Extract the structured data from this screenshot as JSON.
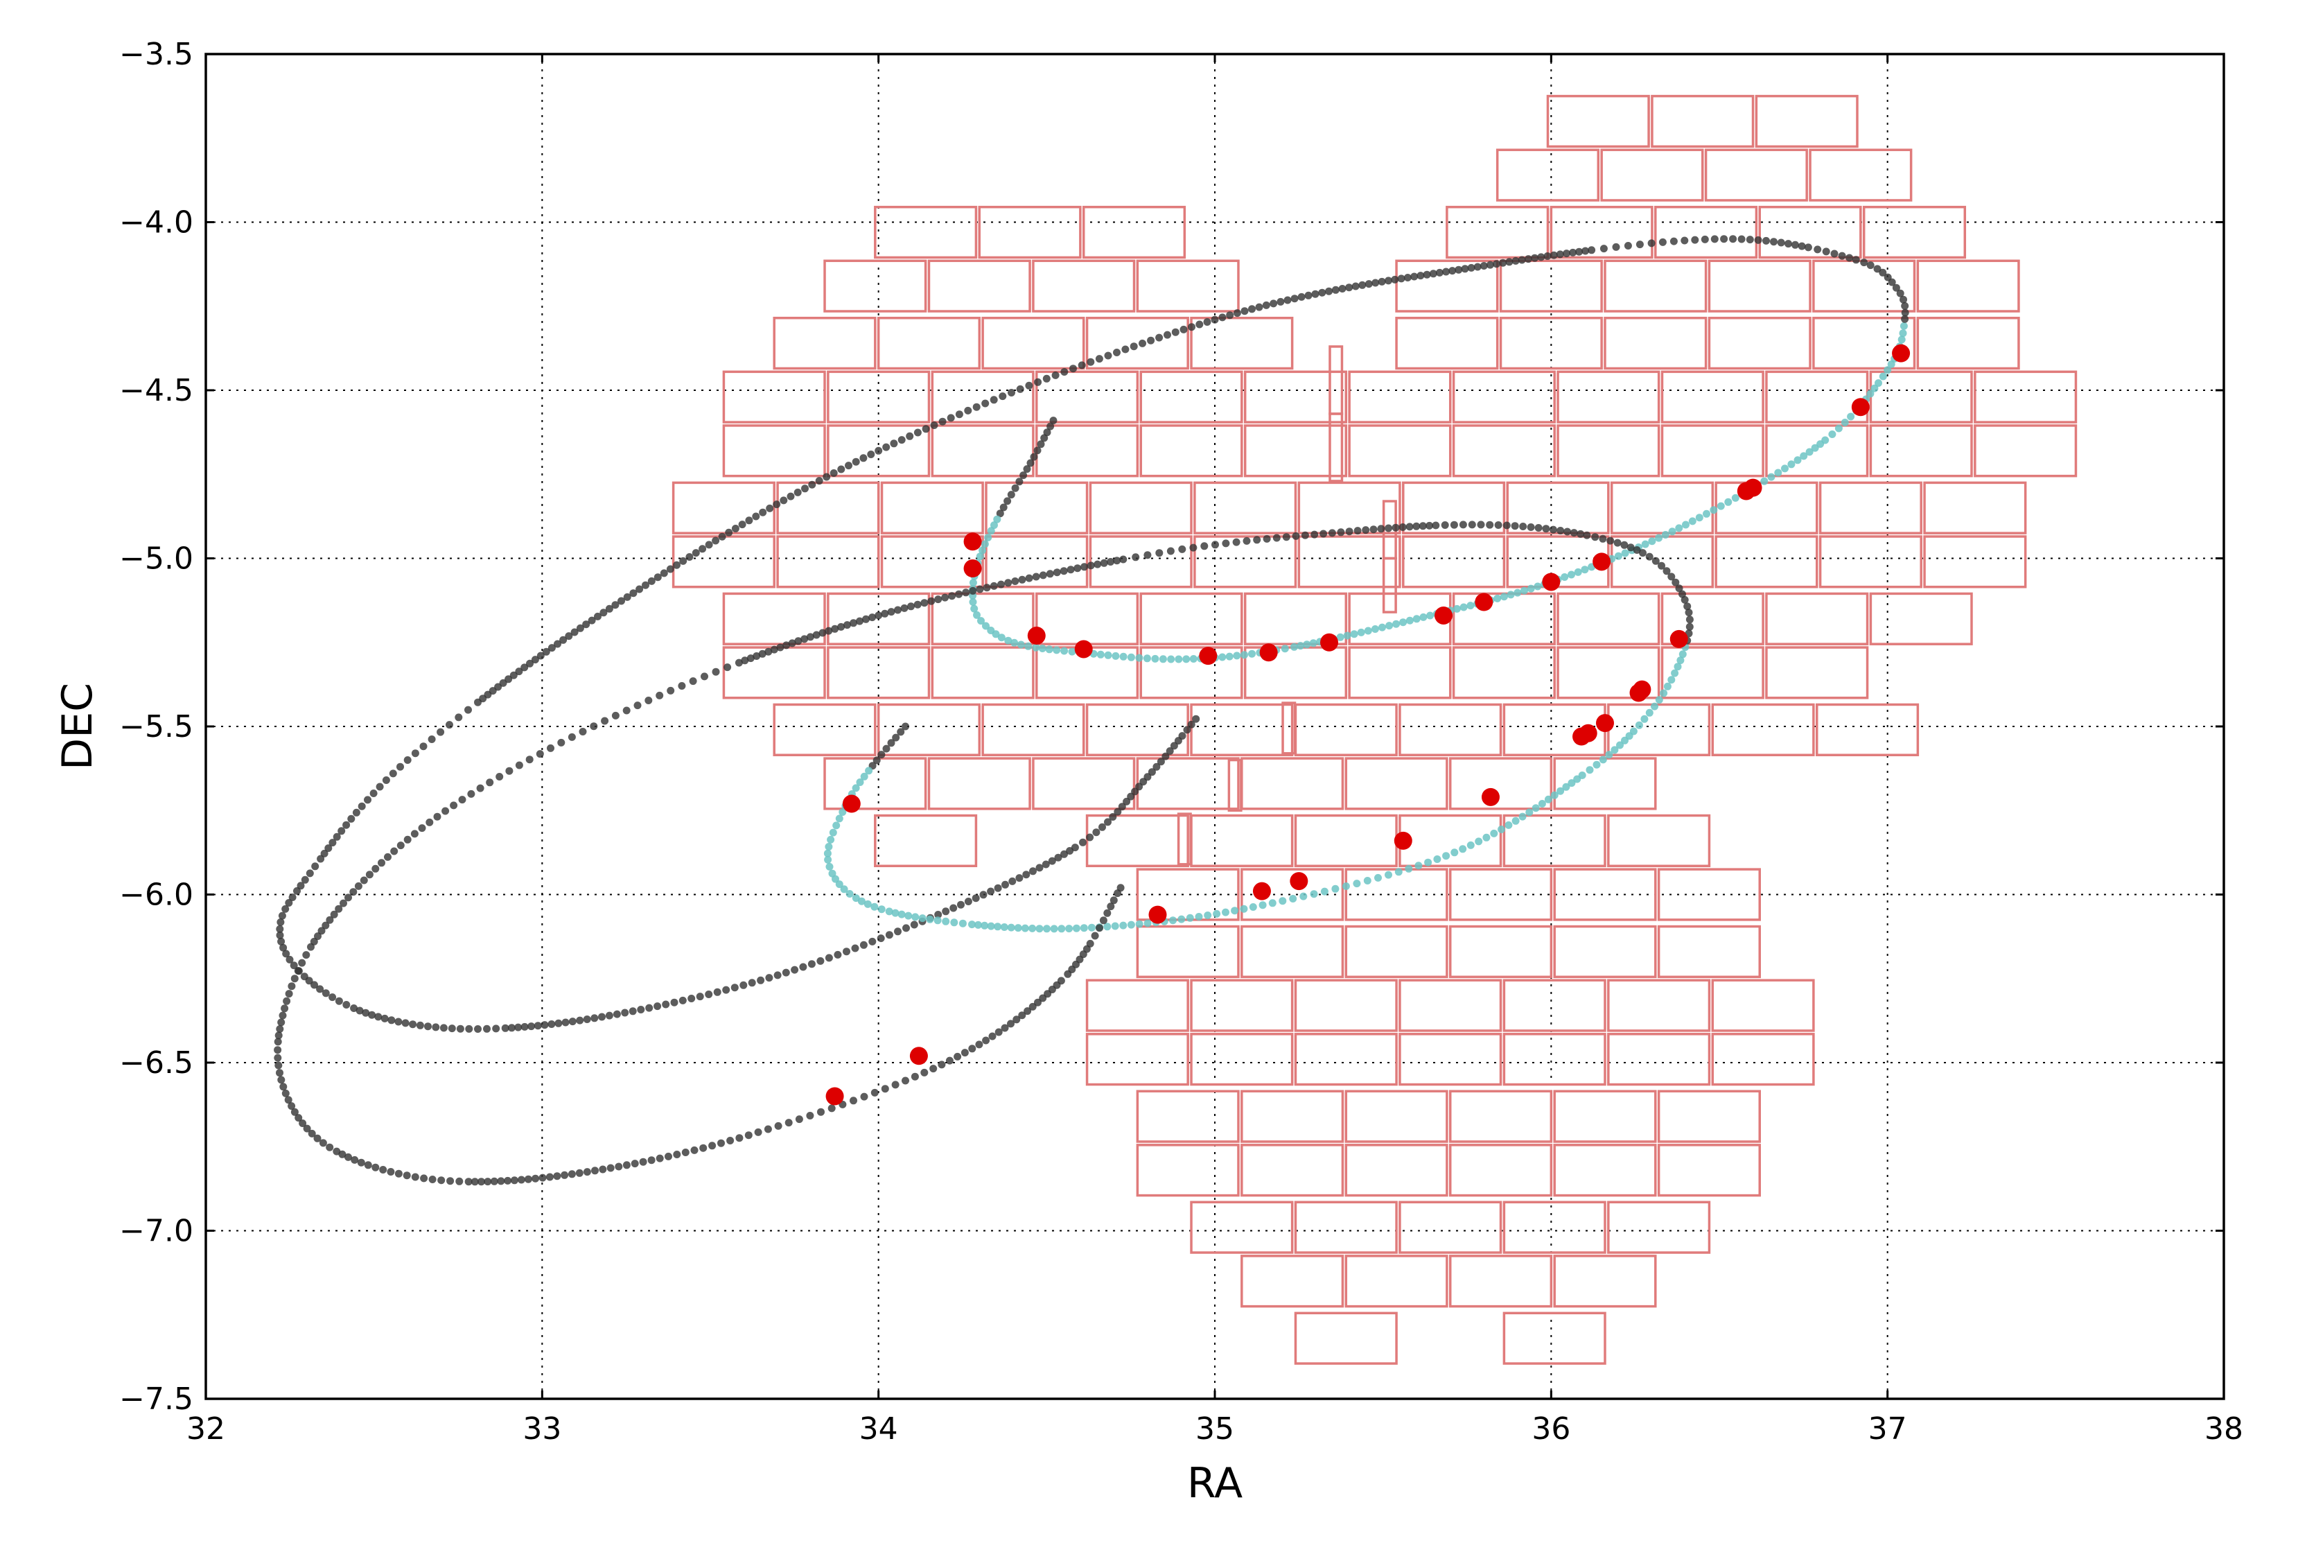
{
  "chart_data": {
    "type": "scatter",
    "xlabel": "RA",
    "ylabel": "DEC",
    "xlim": [
      32,
      38
    ],
    "ylim": [
      -7.5,
      -3.5
    ],
    "x_ticks": [
      "32",
      "33",
      "34",
      "35",
      "36",
      "37",
      "38"
    ],
    "y_ticks": [
      "−3.5",
      "−4.0",
      "−4.5",
      "−5.0",
      "−5.5",
      "−6.0",
      "−6.5",
      "−7.0",
      "−7.5"
    ],
    "grid": true,
    "colors": {
      "ccd_outline": "#e07b7b",
      "orbit_outside": "#333333",
      "orbit_inside": "#6cc4c4",
      "detections": "#dd0000"
    },
    "orbit_tracks": [
      {
        "ra": [
          34.52,
          34.45,
          34.36,
          34.3,
          34.28,
          34.3,
          34.4,
          34.6,
          34.9,
          35.2,
          35.6,
          36.0,
          36.4,
          36.8,
          37.0,
          37.05,
          37.03,
          36.9,
          36.5,
          35.8,
          35.0,
          34.0,
          33.2,
          32.6,
          32.3,
          32.22,
          32.3,
          32.5,
          32.8,
          33.2,
          33.7,
          34.2,
          34.6,
          34.8,
          34.95
        ],
        "dec": [
          -4.59,
          -4.72,
          -4.87,
          -5.0,
          -5.1,
          -5.18,
          -5.25,
          -5.28,
          -5.3,
          -5.27,
          -5.18,
          -5.07,
          -4.9,
          -4.66,
          -4.44,
          -4.3,
          -4.2,
          -4.11,
          -4.05,
          -4.13,
          -4.29,
          -4.68,
          -5.15,
          -5.6,
          -5.95,
          -6.11,
          -6.25,
          -6.36,
          -6.4,
          -6.36,
          -6.24,
          -6.05,
          -5.85,
          -5.65,
          -5.47
        ]
      },
      {
        "ra": [
          34.08,
          33.98,
          33.9,
          33.85,
          33.95,
          34.2,
          34.6,
          35.1,
          35.7,
          36.1,
          36.3,
          36.4,
          36.4,
          36.3,
          36.1,
          35.8,
          35.4,
          34.8,
          34.0,
          33.3,
          32.7,
          32.35,
          32.22,
          32.25,
          32.4,
          32.7,
          33.1,
          33.6,
          34.2,
          34.55,
          34.72
        ],
        "dec": [
          -5.5,
          -5.62,
          -5.74,
          -5.9,
          -6.02,
          -6.08,
          -6.1,
          -6.04,
          -5.88,
          -5.64,
          -5.45,
          -5.26,
          -5.13,
          -5.0,
          -4.93,
          -4.9,
          -4.92,
          -4.99,
          -5.17,
          -5.43,
          -5.76,
          -6.1,
          -6.4,
          -6.62,
          -6.77,
          -6.85,
          -6.83,
          -6.72,
          -6.5,
          -6.25,
          -5.98
        ]
      }
    ],
    "in_field_segments": [
      {
        "track": 0,
        "from": 2,
        "to": 15
      },
      {
        "track": 1,
        "from": 1,
        "to": 11
      }
    ],
    "detections": {
      "ra": [
        34.28,
        34.28,
        34.47,
        34.61,
        34.98,
        35.16,
        35.34,
        35.68,
        35.8,
        36.0,
        36.15,
        36.58,
        36.6,
        36.92,
        37.04,
        33.92,
        34.83,
        35.14,
        35.25,
        35.56,
        35.82,
        36.09,
        36.11,
        36.16,
        36.26,
        36.27,
        36.38,
        33.87,
        34.12
      ],
      "dec": [
        -4.95,
        -5.03,
        -5.23,
        -5.27,
        -5.29,
        -5.28,
        -5.25,
        -5.17,
        -5.13,
        -5.07,
        -5.01,
        -4.8,
        -4.79,
        -4.55,
        -4.39,
        -5.73,
        -6.06,
        -5.99,
        -5.96,
        -5.84,
        -5.71,
        -5.53,
        -5.52,
        -5.49,
        -5.4,
        -5.39,
        -5.24,
        -6.6,
        -6.48
      ]
    },
    "ccd_rows": [
      {
        "dec_center": -3.7,
        "ra_starts": [
          35.99,
          36.3,
          36.61
        ]
      },
      {
        "dec_center": -3.86,
        "ra_starts": [
          35.84,
          36.15,
          36.46,
          36.77
        ]
      },
      {
        "dec_center": -4.03,
        "ra_starts": [
          33.99,
          34.3,
          34.61,
          35.69,
          36.0,
          36.31,
          36.62,
          36.93
        ]
      },
      {
        "dec_center": -4.19,
        "ra_starts": [
          33.84,
          34.15,
          34.46,
          34.77,
          35.54,
          35.85,
          36.16,
          36.47,
          36.78,
          37.09
        ]
      },
      {
        "dec_center": -4.36,
        "ra_starts": [
          33.69,
          34.0,
          34.31,
          34.62,
          34.93,
          35.54,
          35.85,
          36.16,
          36.47,
          36.78,
          37.09
        ]
      },
      {
        "dec_center": -4.52,
        "ra_starts": [
          33.54,
          33.85,
          34.16,
          34.47,
          34.78,
          35.09,
          35.4,
          35.71,
          36.02,
          36.33,
          36.64,
          36.95,
          37.26
        ]
      },
      {
        "dec_center": -4.68,
        "ra_starts": [
          33.54,
          33.85,
          34.16,
          34.47,
          34.78,
          35.09,
          35.4,
          35.71,
          36.02,
          36.33,
          36.64,
          36.95,
          37.26
        ]
      },
      {
        "dec_center": -4.85,
        "ra_starts": [
          33.39,
          33.7,
          34.01,
          34.32,
          34.63,
          34.94,
          35.25,
          35.56,
          35.87,
          36.18,
          36.49,
          36.8,
          37.11
        ]
      },
      {
        "dec_center": -5.01,
        "ra_starts": [
          33.39,
          33.7,
          34.01,
          34.32,
          34.63,
          34.94,
          35.25,
          35.56,
          35.87,
          36.18,
          36.49,
          36.8,
          37.11
        ]
      },
      {
        "dec_center": -5.18,
        "ra_starts": [
          33.54,
          33.85,
          34.16,
          34.47,
          34.78,
          35.09,
          35.4,
          35.71,
          36.02,
          36.33,
          36.64,
          36.95
        ]
      },
      {
        "dec_center": -5.34,
        "ra_starts": [
          33.54,
          33.85,
          34.16,
          34.47,
          34.78,
          35.09,
          35.4,
          35.71,
          36.02,
          36.33,
          36.64
        ]
      },
      {
        "dec_center": -5.51,
        "ra_starts": [
          33.69,
          34.0,
          34.31,
          34.62,
          34.93,
          35.24,
          35.55,
          35.86,
          36.17,
          36.48,
          36.79
        ]
      },
      {
        "dec_center": -5.67,
        "ra_starts": [
          33.84,
          34.15,
          34.46,
          34.77,
          35.08,
          35.39,
          35.7,
          36.01
        ]
      },
      {
        "dec_center": -5.84,
        "ra_starts": [
          33.99,
          34.62,
          34.93,
          35.24,
          35.55,
          35.86,
          36.17
        ]
      },
      {
        "dec_center": -6.0,
        "ra_starts": [
          34.77,
          35.08,
          35.39,
          35.7,
          36.01,
          36.32
        ]
      },
      {
        "dec_center": -6.17,
        "ra_starts": [
          34.77,
          35.08,
          35.39,
          35.7,
          36.01,
          36.32
        ]
      },
      {
        "dec_center": -6.33,
        "ra_starts": [
          34.62,
          34.93,
          35.24,
          35.55,
          35.86,
          36.17,
          36.48
        ]
      },
      {
        "dec_center": -6.49,
        "ra_starts": [
          34.62,
          34.93,
          35.24,
          35.55,
          35.86,
          36.17,
          36.48
        ]
      },
      {
        "dec_center": -6.66,
        "ra_starts": [
          34.77,
          35.08,
          35.39,
          35.7,
          36.01,
          36.32
        ]
      },
      {
        "dec_center": -6.82,
        "ra_starts": [
          34.77,
          35.08,
          35.39,
          35.7,
          36.01,
          36.32
        ]
      },
      {
        "dec_center": -6.99,
        "ra_starts": [
          34.93,
          35.24,
          35.55,
          35.86,
          36.17
        ]
      },
      {
        "dec_center": -7.15,
        "ra_starts": [
          35.08,
          35.39,
          35.7,
          36.01
        ]
      },
      {
        "dec_center": -7.32,
        "ra_starts": [
          35.24,
          35.86
        ]
      }
    ],
    "ccd_size": {
      "ra_width": 0.3,
      "dec_height": 0.15
    },
    "narrow_ccds": [
      {
        "ra": 35.36,
        "dec_top": -4.37,
        "dec_bottom": -4.57
      },
      {
        "ra": 35.36,
        "dec_top": -4.57,
        "dec_bottom": -4.77
      },
      {
        "ra": 35.52,
        "dec_top": -4.83,
        "dec_bottom": -5.0
      },
      {
        "ra": 35.52,
        "dec_top": -5.0,
        "dec_bottom": -5.16
      },
      {
        "ra": 35.22,
        "dec_top": -5.43,
        "dec_bottom": -5.58
      },
      {
        "ra": 35.06,
        "dec_top": -5.6,
        "dec_bottom": -5.75
      },
      {
        "ra": 34.91,
        "dec_top": -5.76,
        "dec_bottom": -5.91
      }
    ]
  }
}
